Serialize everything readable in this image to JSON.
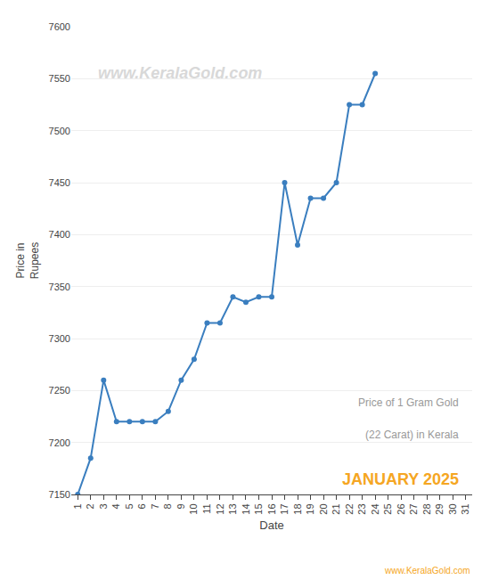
{
  "chart_data": {
    "type": "line",
    "x": [
      1,
      2,
      3,
      4,
      5,
      6,
      7,
      8,
      9,
      10,
      11,
      12,
      13,
      14,
      15,
      16,
      17,
      18,
      19,
      20,
      21,
      22,
      23,
      24,
      25,
      26,
      27,
      28,
      29,
      30,
      31
    ],
    "values": [
      7150,
      7185,
      7260,
      7220,
      7220,
      7220,
      7220,
      7230,
      7260,
      7280,
      7315,
      7315,
      7340,
      7335,
      7340,
      7340,
      7450,
      7390,
      7435,
      7435,
      7450,
      7525,
      7525,
      7555,
      null,
      null,
      null,
      null,
      null,
      null,
      null
    ],
    "color": "#3a7ebf",
    "marker": "circle",
    "xlabel": "Date",
    "ylabel": "Price in\nRupees",
    "xlim": [
      0.5,
      31.5
    ],
    "xticks": [
      1,
      2,
      3,
      4,
      5,
      6,
      7,
      8,
      9,
      10,
      11,
      12,
      13,
      14,
      15,
      16,
      17,
      18,
      19,
      20,
      21,
      22,
      23,
      24,
      25,
      26,
      27,
      28,
      29,
      30,
      31
    ],
    "ylim": [
      7150,
      7600
    ],
    "yticks": [
      7150,
      7200,
      7250,
      7300,
      7350,
      7400,
      7450,
      7500,
      7550,
      7600
    ],
    "grid": "y",
    "annotations": [
      {
        "text": "www.KeralaGold.com",
        "color": "#d8d8d8"
      },
      {
        "text": "Price of 1 Gram Gold",
        "color": "#999999"
      },
      {
        "text": "(22 Carat) in Kerala",
        "color": "#999999"
      },
      {
        "text": "JANUARY 2025",
        "color": "#f5a623"
      },
      {
        "text": "www.KeralaGold.com",
        "color": "#f5a623"
      }
    ]
  }
}
